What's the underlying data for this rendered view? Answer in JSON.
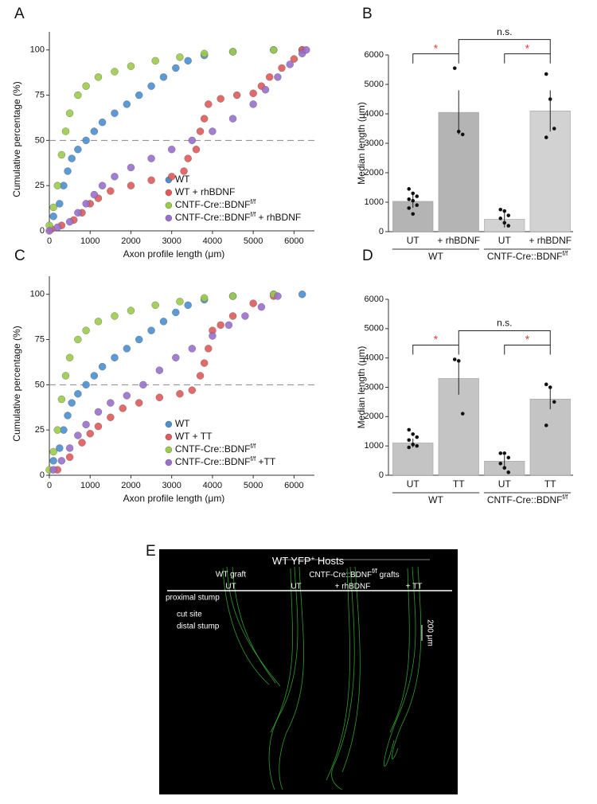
{
  "chart_data": [
    {
      "type": "scatter",
      "panel": "A",
      "ylabel": "Cumulative percentage (%)",
      "xlabel": "Axon profile length (μm)",
      "xlim": [
        0,
        6500
      ],
      "ylim": [
        0,
        110
      ],
      "xticks": [
        0,
        1000,
        2000,
        3000,
        4000,
        5000,
        6000
      ],
      "yticks": [
        0,
        25,
        50,
        75,
        100
      ],
      "reference_line": 50,
      "legend": "lower right",
      "series": [
        {
          "name": "WT",
          "color": "#4a90d0",
          "x": [
            100,
            250,
            350,
            450,
            550,
            700,
            900,
            1100,
            1300,
            1600,
            1900,
            2200,
            2500,
            2800,
            3100,
            3400,
            3800,
            4500,
            5500,
            6200
          ],
          "values": [
            8,
            15,
            25,
            33,
            40,
            45,
            50,
            55,
            60,
            65,
            70,
            75,
            80,
            85,
            90,
            94,
            97,
            99,
            100,
            100
          ]
        },
        {
          "name": "WT + rhBDNF",
          "color": "#e05a5a",
          "x": [
            50,
            300,
            600,
            800,
            1000,
            1200,
            1500,
            2000,
            2500,
            3000,
            3300,
            3400,
            3600,
            3700,
            3800,
            3900,
            4200,
            4600,
            5000,
            5200,
            5400,
            5700,
            6000,
            6200
          ],
          "values": [
            1,
            3,
            6,
            10,
            15,
            18,
            22,
            25,
            28,
            30,
            33,
            40,
            45,
            55,
            62,
            70,
            73,
            75,
            76,
            80,
            85,
            90,
            95,
            100
          ]
        },
        {
          "name": "CNTF-Cre::BDNF",
          "name_sup": "f/f",
          "color": "#9ccc4a",
          "x": [
            0,
            100,
            200,
            300,
            400,
            500,
            700,
            900,
            1200,
            1600,
            2000,
            2600,
            3200,
            3800,
            4500,
            5500
          ],
          "values": [
            3,
            13,
            25,
            42,
            55,
            65,
            75,
            80,
            85,
            88,
            91,
            94,
            96,
            98,
            99,
            100
          ]
        },
        {
          "name": "CNTF-Cre::BDNF",
          "name_sup": "f/f",
          "name_suffix": " + rhBDNF",
          "color": "#9a6fce",
          "x": [
            0,
            200,
            500,
            700,
            900,
            1100,
            1300,
            1600,
            2000,
            2500,
            3000,
            3500,
            4000,
            4500,
            5000,
            5300,
            5600,
            5900,
            6200,
            6300
          ],
          "values": [
            0,
            2,
            5,
            10,
            15,
            20,
            25,
            30,
            35,
            40,
            45,
            50,
            55,
            62,
            70,
            78,
            85,
            92,
            98,
            100
          ]
        }
      ]
    },
    {
      "type": "bar",
      "panel": "B",
      "ylabel": "Median length (μm)",
      "ylim": [
        0,
        6000
      ],
      "yticks": [
        0,
        1000,
        2000,
        3000,
        4000,
        5000,
        6000
      ],
      "categories": [
        "UT",
        "+ rhBDNF",
        "UT",
        "+ rhBDNF"
      ],
      "colors": [
        "#b4b4b4",
        "#b4b4b4",
        "#d2d2d2",
        "#d2d2d2"
      ],
      "values": [
        1030,
        4050,
        420,
        4100
      ],
      "errors": [
        220,
        750,
        280,
        700
      ],
      "points": [
        [
          1450,
          1300,
          1200,
          1100,
          1050,
          900,
          800,
          600
        ],
        [
          5550,
          3400,
          3300
        ],
        [
          750,
          700,
          550,
          450,
          300,
          200
        ],
        [
          5350,
          4500,
          3500,
          3200
        ]
      ],
      "groups": [
        {
          "label": "WT"
        },
        {
          "label": "CNTF-Cre::BDNF",
          "label_sup": "f/f"
        }
      ],
      "significance": [
        "*",
        "*",
        "n.s."
      ]
    },
    {
      "type": "scatter",
      "panel": "C",
      "ylabel": "Cumulative percentage (%)",
      "xlabel": "Axon profile length (μm)",
      "xlim": [
        0,
        6500
      ],
      "ylim": [
        0,
        110
      ],
      "xticks": [
        0,
        1000,
        2000,
        3000,
        4000,
        5000,
        6000
      ],
      "yticks": [
        0,
        25,
        50,
        75,
        100
      ],
      "reference_line": 50,
      "legend": "lower right",
      "series": [
        {
          "name": "WT",
          "color": "#4a90d0",
          "x": [
            100,
            250,
            350,
            450,
            550,
            700,
            900,
            1100,
            1300,
            1600,
            1900,
            2200,
            2500,
            2800,
            3100,
            3400,
            3800,
            4500,
            5500,
            6200
          ],
          "values": [
            8,
            15,
            25,
            33,
            40,
            45,
            50,
            55,
            60,
            65,
            70,
            75,
            80,
            85,
            90,
            94,
            97,
            99,
            100,
            100
          ]
        },
        {
          "name": "WT + TT",
          "color": "#e05a5a",
          "x": [
            200,
            500,
            800,
            1000,
            1200,
            1500,
            1800,
            2200,
            2700,
            3200,
            3500,
            3700,
            3800,
            3900,
            4000,
            4200,
            4500,
            5000,
            5500
          ],
          "values": [
            3,
            10,
            18,
            23,
            27,
            32,
            37,
            40,
            43,
            45,
            47,
            55,
            62,
            70,
            80,
            83,
            88,
            95,
            99
          ]
        },
        {
          "name": "CNTF-Cre::BDNF",
          "name_sup": "f/f",
          "color": "#9ccc4a",
          "x": [
            0,
            100,
            200,
            300,
            400,
            500,
            700,
            900,
            1200,
            1600,
            2000,
            2600,
            3200,
            3800,
            4500,
            5500
          ],
          "values": [
            3,
            13,
            25,
            42,
            55,
            65,
            75,
            80,
            85,
            88,
            91,
            94,
            96,
            98,
            99,
            100
          ]
        },
        {
          "name": "CNTF-Cre::BDNF",
          "name_sup": "f/f",
          "name_suffix": " +TT",
          "color": "#9a6fce",
          "x": [
            100,
            300,
            500,
            700,
            900,
            1200,
            1500,
            1900,
            2300,
            2700,
            3100,
            3500,
            4000,
            4400,
            4800,
            5200,
            5600
          ],
          "values": [
            3,
            8,
            15,
            22,
            28,
            35,
            40,
            44,
            50,
            58,
            65,
            70,
            77,
            83,
            88,
            93,
            99
          ]
        }
      ]
    },
    {
      "type": "bar",
      "panel": "D",
      "ylabel": "Median length (μm)",
      "ylim": [
        0,
        6000
      ],
      "yticks": [
        0,
        1000,
        2000,
        3000,
        4000,
        5000,
        6000
      ],
      "categories": [
        "UT",
        "TT",
        "UT",
        "TT"
      ],
      "colors": [
        "#c4c4c4",
        "#c4c4c4",
        "#c4c4c4",
        "#c4c4c4"
      ],
      "values": [
        1100,
        3300,
        480,
        2600
      ],
      "errors": [
        150,
        550,
        200,
        350
      ],
      "points": [
        [
          1550,
          1400,
          1300,
          1200,
          1050,
          1000,
          950
        ],
        [
          3950,
          3900,
          2100
        ],
        [
          750,
          750,
          600,
          400,
          250,
          100
        ],
        [
          3100,
          3000,
          2500,
          1700
        ]
      ],
      "groups": [
        {
          "label": "WT"
        },
        {
          "label": "CNTF-Cre::BDNF",
          "label_sup": "f/f"
        }
      ],
      "significance": [
        "*",
        "*",
        "n.s."
      ]
    }
  ],
  "panel_e": {
    "letter": "E",
    "title": "WT YFP",
    "title_sup": "+",
    "title_suffix": " Hosts",
    "col_group_left": "WT graft",
    "col_group_right": "CNTF-Cre::BDNF",
    "col_group_right_sup": "f/f",
    "col_group_right_suffix": " grafts",
    "columns": [
      "UT",
      "UT",
      "+ rhBDNF",
      "+ TT"
    ],
    "labels": [
      "proximal stump",
      "cut site",
      "distal stump"
    ],
    "scale_bar": "200 μm"
  }
}
